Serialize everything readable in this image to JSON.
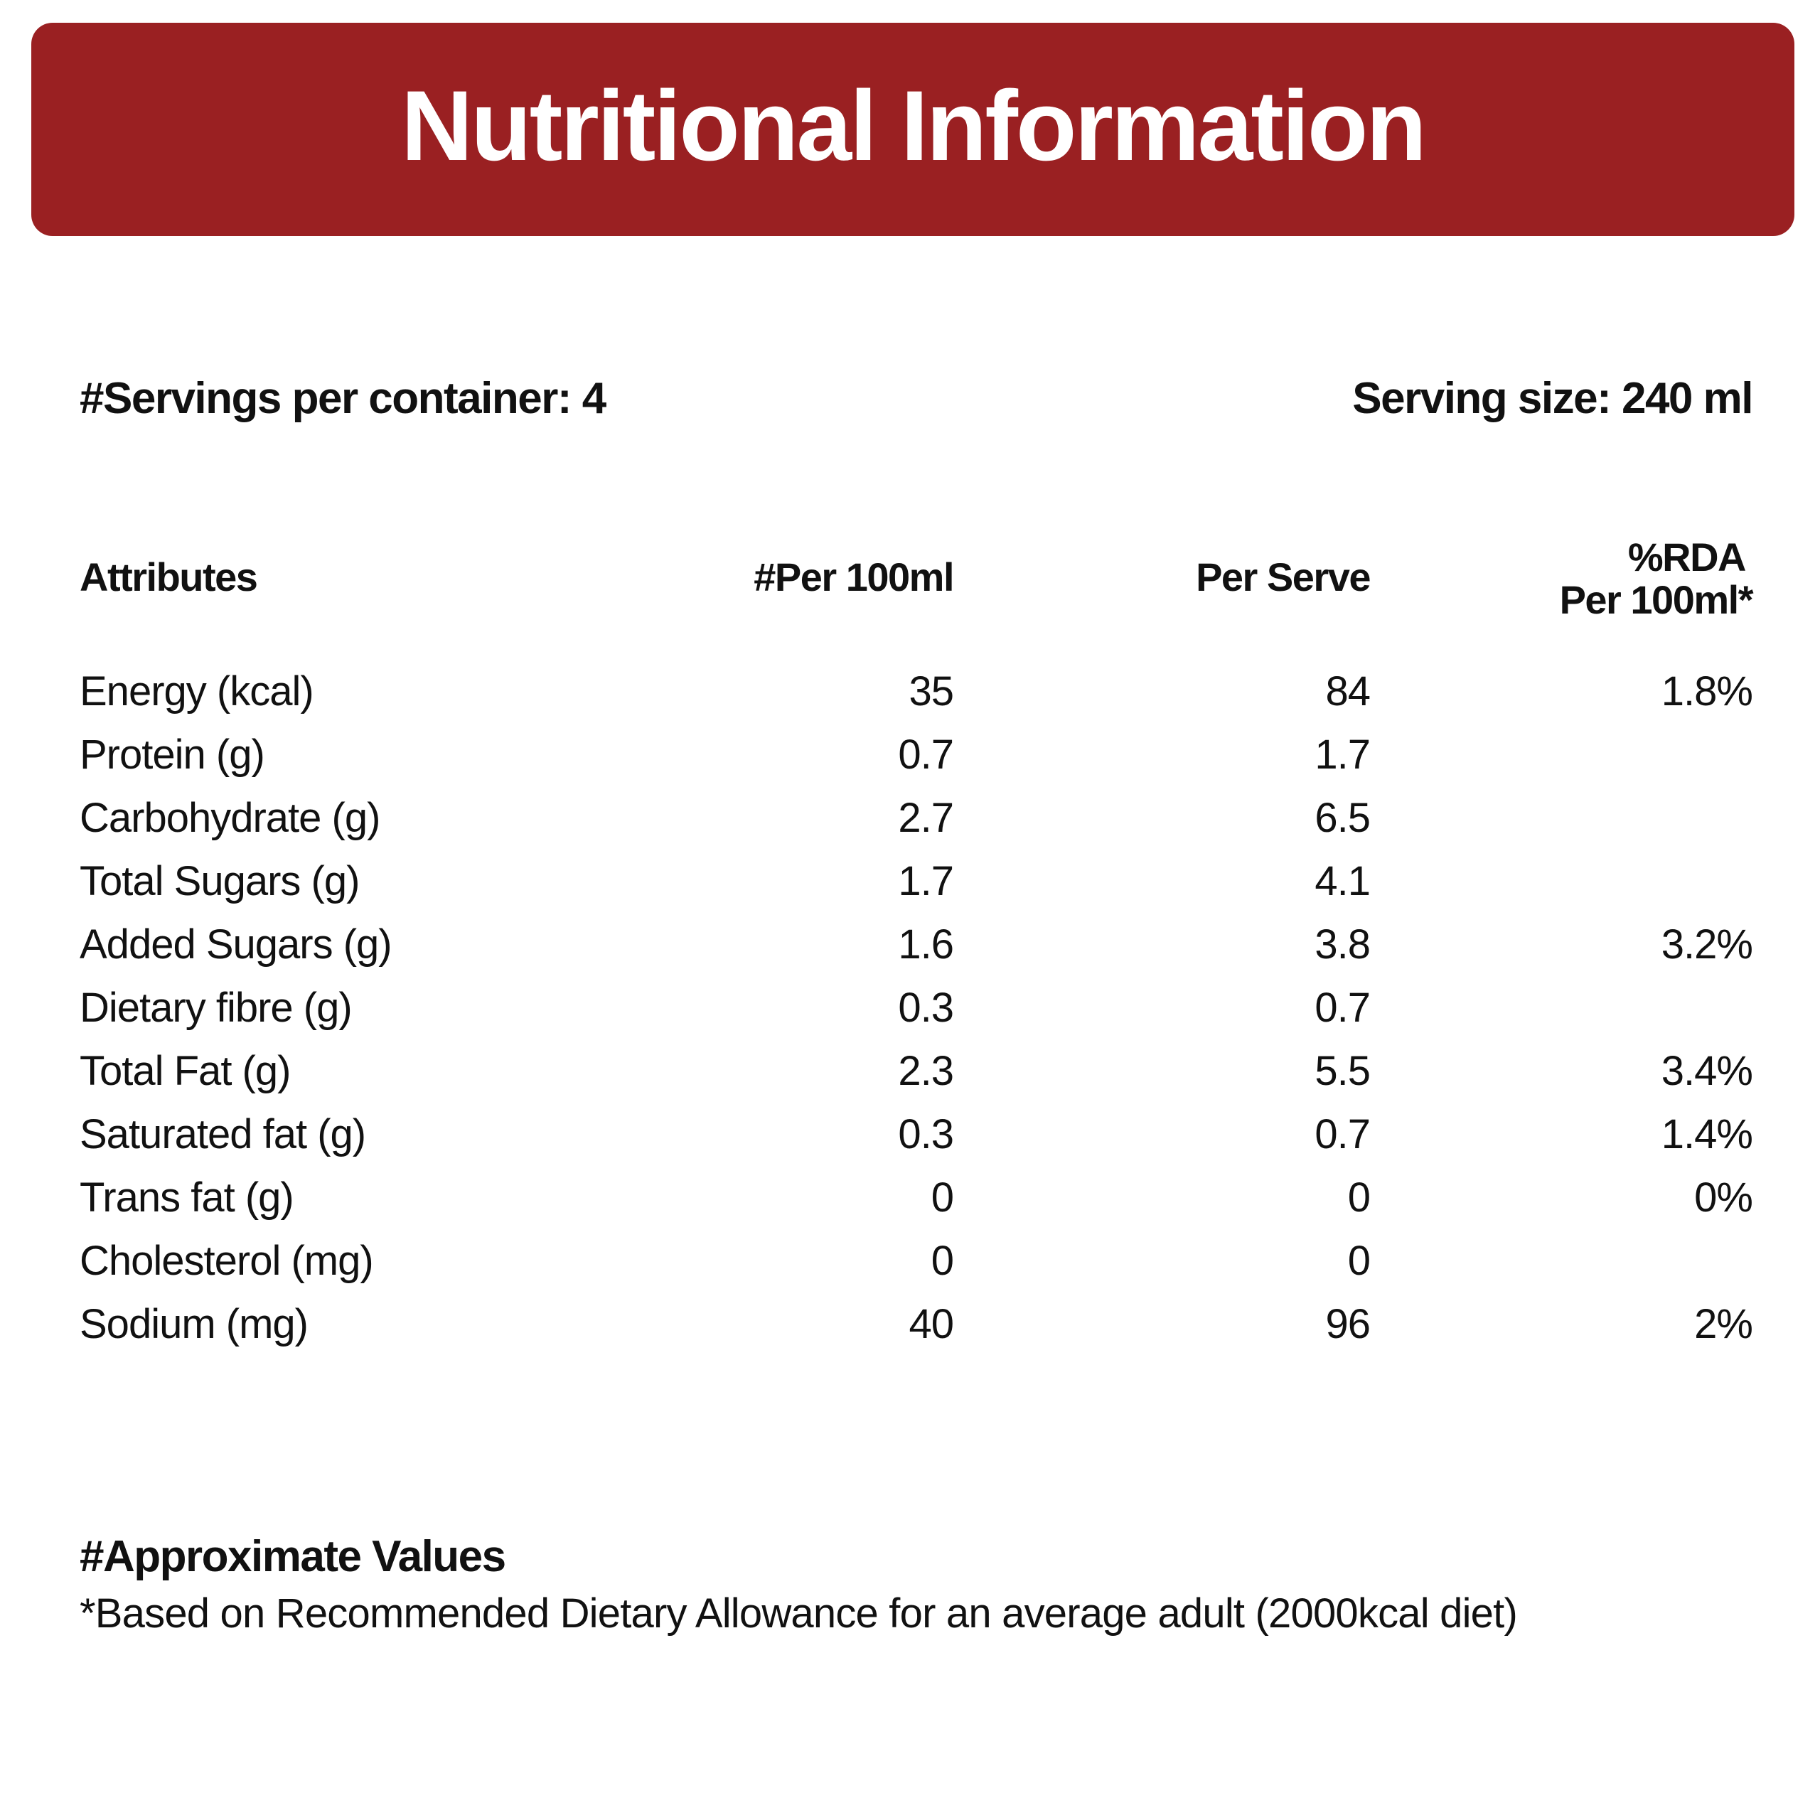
{
  "header": {
    "title": "Nutritional Information"
  },
  "serving": {
    "servings_per_container": "#Servings per container: 4",
    "serving_size": "Serving size: 240 ml"
  },
  "table": {
    "headers": {
      "attributes": "Attributes",
      "per100": "#Per 100ml",
      "per_serve": "Per Serve",
      "rda_line1": "%RDA",
      "rda_line2": "Per 100ml*"
    },
    "rows": [
      {
        "attribute": "Energy (kcal)",
        "per100": "35",
        "per_serve": "84",
        "rda": "1.8%"
      },
      {
        "attribute": "Protein (g)",
        "per100": "0.7",
        "per_serve": "1.7",
        "rda": ""
      },
      {
        "attribute": "Carbohydrate (g)",
        "per100": "2.7",
        "per_serve": "6.5",
        "rda": ""
      },
      {
        "attribute": "Total Sugars (g)",
        "per100": "1.7",
        "per_serve": "4.1",
        "rda": ""
      },
      {
        "attribute": "Added Sugars (g)",
        "per100": "1.6",
        "per_serve": "3.8",
        "rda": "3.2%"
      },
      {
        "attribute": "Dietary fibre (g)",
        "per100": "0.3",
        "per_serve": "0.7",
        "rda": ""
      },
      {
        "attribute": "Total Fat (g)",
        "per100": "2.3",
        "per_serve": "5.5",
        "rda": "3.4%"
      },
      {
        "attribute": "Saturated fat (g)",
        "per100": "0.3",
        "per_serve": "0.7",
        "rda": "1.4%"
      },
      {
        "attribute": "Trans fat (g)",
        "per100": "0",
        "per_serve": "0",
        "rda": "0%"
      },
      {
        "attribute": "Cholesterol (mg)",
        "per100": "0",
        "per_serve": "0",
        "rda": ""
      },
      {
        "attribute": "Sodium (mg)",
        "per100": "40",
        "per_serve": "96",
        "rda": "2%"
      }
    ]
  },
  "footnote": {
    "title": "#Approximate Values",
    "text": "*Based on Recommended Dietary Allowance for an average adult (2000kcal diet)"
  },
  "colors": {
    "banner": "#9a2022",
    "text": "#111111",
    "background": "#ffffff"
  }
}
